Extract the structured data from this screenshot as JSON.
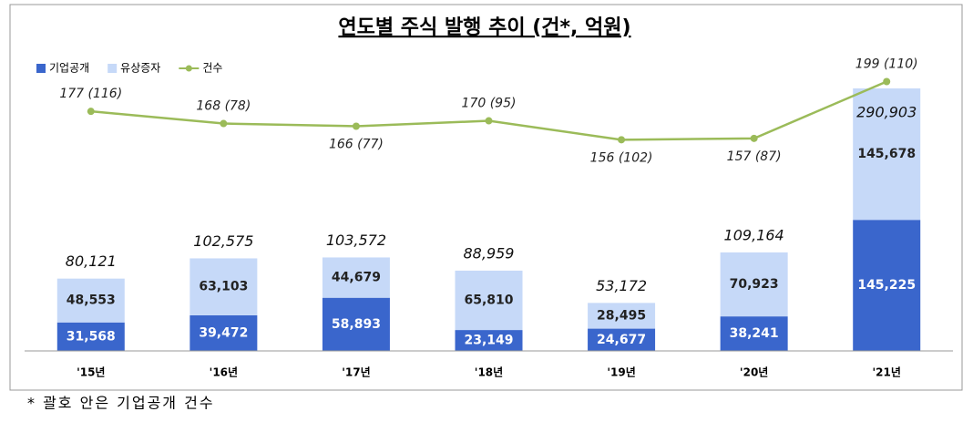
{
  "chart_data": {
    "type": "bar",
    "title": "연도별 주식 발행 추이 (건*, 억원)",
    "footnote": "* 괄호 안은 기업공개 건수",
    "categories": [
      "'15년",
      "'16년",
      "'17년",
      "'18년",
      "'19년",
      "'20년",
      "'21년"
    ],
    "stacked": true,
    "series": [
      {
        "name": "기업공개",
        "color": "#3a66cc",
        "values": [
          31568,
          39472,
          58893,
          23149,
          24677,
          38241,
          145225
        ],
        "value_labels": [
          "31,568",
          "39,472",
          "58,893",
          "23,149",
          "24,677",
          "38,241",
          "145,225"
        ]
      },
      {
        "name": "유상증자",
        "color": "#c6d9f8",
        "values": [
          48553,
          63103,
          44679,
          65810,
          28495,
          70923,
          145678
        ],
        "value_labels": [
          "48,553",
          "63,103",
          "44,679",
          "65,810",
          "28,495",
          "70,923",
          "145,678"
        ]
      },
      {
        "name": "건수",
        "type": "line",
        "axis": "y2",
        "color": "#9bbb59",
        "values": [
          177,
          168,
          166,
          170,
          156,
          157,
          199
        ],
        "value_labels": [
          "177 (116)",
          "168 (78)",
          "166 (77)",
          "170 (95)",
          "156 (102)",
          "157 (87)",
          "199 (110)"
        ]
      }
    ],
    "totals": {
      "values": [
        80121,
        102575,
        103572,
        88959,
        53172,
        109164,
        290903
      ],
      "value_labels": [
        "80,121",
        "102,575",
        "103,572",
        "88,959",
        "53,172",
        "109,164",
        "290,903"
      ]
    },
    "ylim": [
      0,
      300000
    ],
    "y2lim": [
      0,
      200
    ],
    "legend": "top-left"
  }
}
